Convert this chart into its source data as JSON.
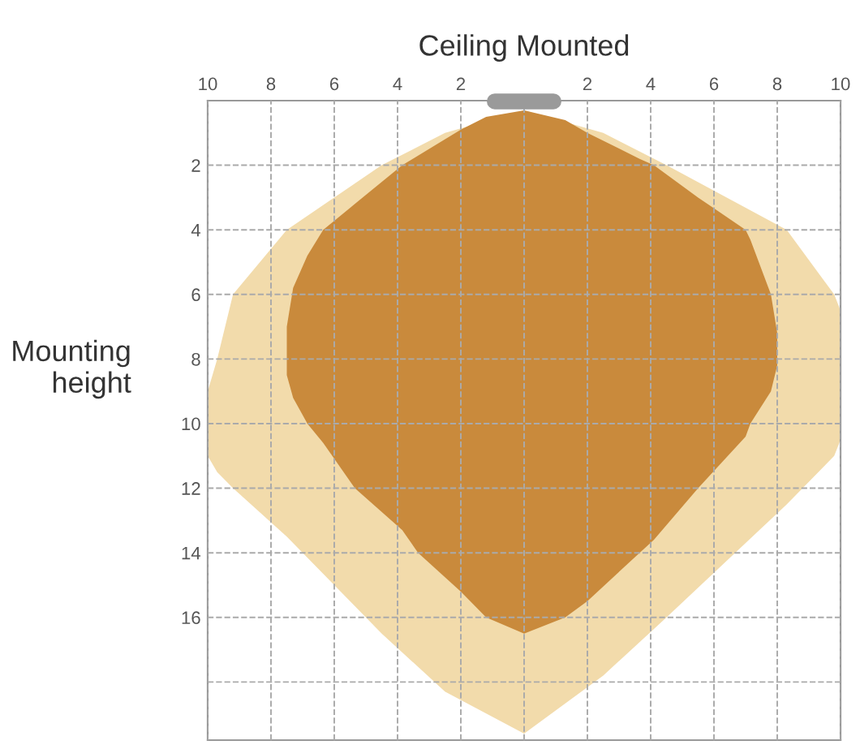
{
  "chart_data": {
    "type": "area",
    "title": "Ceiling Mounted",
    "ylabel": "Mounting\nheight",
    "xlim": [
      -10,
      10
    ],
    "ylim": [
      19.8,
      0
    ],
    "xticks": [
      {
        "value": -10,
        "label": "10"
      },
      {
        "value": -8,
        "label": "8"
      },
      {
        "value": -6,
        "label": "6"
      },
      {
        "value": -4,
        "label": "4"
      },
      {
        "value": -2,
        "label": "2"
      },
      {
        "value": 0,
        "label": null
      },
      2,
      4,
      6,
      8,
      10
    ],
    "yticks": [
      2,
      4,
      6,
      8,
      10,
      12,
      14,
      16,
      {
        "value": 18,
        "label": null
      }
    ],
    "grid": true,
    "line_style": "dashed",
    "series": [
      {
        "color": "#f2dbab",
        "x": [
          -10,
          -9.7,
          -9.2,
          -7.5,
          -4.5,
          -2.5,
          0,
          2.5,
          4.5,
          8.3,
          9.8,
          10,
          10,
          9.8,
          8.3,
          4.5,
          2.5,
          0,
          -2.5,
          -4.5,
          -7.5,
          -9.2,
          -9.7,
          -10
        ],
        "values": [
          9,
          8,
          6,
          4,
          2,
          1,
          0.3,
          1,
          2,
          4,
          6,
          6.5,
          10.5,
          11,
          12.5,
          16,
          17.8,
          19.6,
          18.3,
          16.5,
          13.5,
          12,
          11.5,
          11
        ]
      },
      {
        "color": "#c98a3c",
        "x": [
          -7.5,
          -7.3,
          -6.85,
          -6.35,
          -5.35,
          -3.85,
          -3.35,
          -2,
          -1.2,
          0,
          1.3,
          2,
          3.65,
          4.1,
          5.5,
          7,
          7.15,
          7.8,
          8,
          8,
          7.8,
          7.15,
          7,
          5.5,
          4.1,
          3.65,
          2,
          1.3,
          0,
          -1.2,
          -2,
          -3.35,
          -3.85,
          -5.35,
          -6.35,
          -6.85,
          -7.3,
          -7.5
        ],
        "values": [
          7,
          5.8,
          4.8,
          4,
          3.2,
          2,
          1.7,
          0.9,
          0.5,
          0.3,
          0.6,
          1,
          1.8,
          2,
          3,
          4,
          4.3,
          6,
          7.2,
          8.2,
          9,
          10,
          10.4,
          12,
          13.6,
          14,
          15.5,
          16,
          16.5,
          16,
          15.2,
          14,
          13.3,
          12,
          10.6,
          10,
          9.2,
          8.5
        ]
      }
    ]
  }
}
